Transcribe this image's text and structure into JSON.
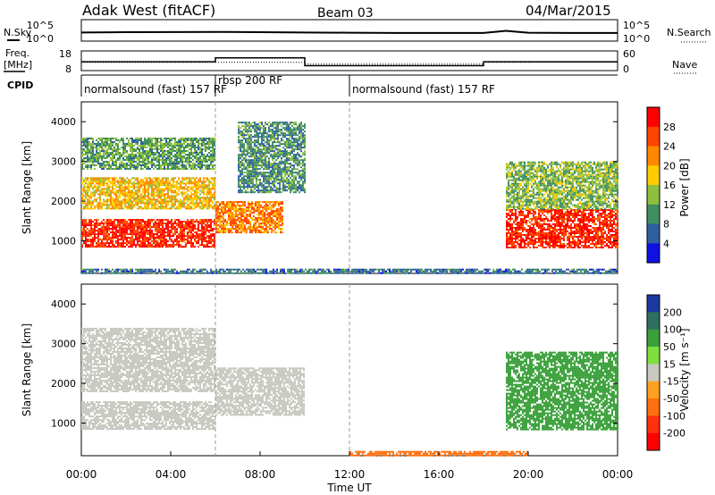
{
  "header": {
    "station": "Adak West (fitACF)",
    "beam": "Beam 03",
    "date": "04/Mar/2015"
  },
  "left_labels": {
    "nsky": "N.Sky",
    "freq": "Freq.",
    "mhz": "[MHz]",
    "cpid": "CPID"
  },
  "right_labels": {
    "nsearch": "N.Search",
    "nave": "Nave"
  },
  "chart_data": [
    {
      "type": "line",
      "panel": "noise",
      "series": [
        {
          "name": "N.Sky",
          "x": [
            0,
            2,
            4,
            6,
            8,
            10,
            12,
            14,
            16,
            18,
            19,
            20,
            22,
            24
          ],
          "values": [
            100,
            120,
            130,
            140,
            120,
            100,
            90,
            80,
            80,
            80,
            250,
            90,
            80,
            80
          ]
        },
        {
          "name": "N.Search",
          "x": [
            0,
            2,
            4,
            6,
            8,
            10,
            12,
            14,
            16,
            18,
            19,
            20,
            22,
            24
          ],
          "values": [
            100,
            110,
            120,
            125,
            110,
            95,
            85,
            80,
            80,
            80,
            220,
            85,
            80,
            80
          ]
        }
      ],
      "yticklabels_left": [
        "10^5",
        "10^0"
      ],
      "yticklabels_right": [
        "10^5",
        "10^0"
      ],
      "xlim": [
        0,
        24
      ]
    },
    {
      "type": "line",
      "panel": "frequency",
      "series": [
        {
          "name": "Freq.",
          "x": [
            0,
            6,
            6,
            10,
            10,
            18,
            18,
            24
          ],
          "values": [
            12.5,
            12.5,
            14.5,
            14.5,
            10.5,
            10.5,
            12.5,
            12.5
          ]
        },
        {
          "name": "Nave",
          "x": [
            0,
            6,
            10,
            10,
            18,
            18,
            24
          ],
          "values": [
            25,
            25,
            25,
            20,
            20,
            25,
            25
          ]
        }
      ],
      "yticklabels_left": [
        "18",
        "8"
      ],
      "yticklabels_right": [
        "60",
        "0"
      ],
      "ylim": [
        8,
        18
      ],
      "xlim": [
        0,
        24
      ]
    },
    {
      "type": "table",
      "panel": "cpid",
      "segments": [
        {
          "label": "normalsound (fast) 157 RF",
          "start": 0,
          "end": 6
        },
        {
          "label": "rbsp 200 RF",
          "start": 6,
          "end": 12
        },
        {
          "label": "normalsound (fast) 157 RF",
          "start": 12,
          "end": 24
        }
      ]
    },
    {
      "type": "heatmap",
      "panel": "power",
      "ylabel": "Slant Range [km]",
      "yticks": [
        1000,
        2000,
        3000,
        4000
      ],
      "ylim": [
        180,
        4500
      ],
      "xlim": [
        0,
        24
      ],
      "colorbar": {
        "label": "Power [dB]",
        "ticks": [
          "28",
          "24",
          "20",
          "16",
          "12",
          "8",
          "4"
        ],
        "colors": [
          "#ff0000",
          "#ff4400",
          "#ff8800",
          "#ffcc00",
          "#8fbf3f",
          "#3f8f5f",
          "#2f5fa0",
          "#1010e0"
        ]
      },
      "regions": [
        {
          "x": [
            0,
            6
          ],
          "y": [
            850,
            1550
          ],
          "value": 28
        },
        {
          "x": [
            6,
            9
          ],
          "y": [
            1200,
            2000
          ],
          "value": 22
        },
        {
          "x": [
            0,
            6
          ],
          "y": [
            1800,
            2600
          ],
          "value": 18
        },
        {
          "x": [
            0,
            6
          ],
          "y": [
            2800,
            3600
          ],
          "value": 10
        },
        {
          "x": [
            7,
            10
          ],
          "y": [
            2200,
            4000
          ],
          "value": 8
        },
        {
          "x": [
            19,
            24
          ],
          "y": [
            850,
            1800
          ],
          "value": 28
        },
        {
          "x": [
            19,
            24
          ],
          "y": [
            1800,
            3000
          ],
          "value": 12
        },
        {
          "x": [
            0,
            24
          ],
          "y": [
            180,
            300
          ],
          "value": 6
        }
      ]
    },
    {
      "type": "heatmap",
      "panel": "velocity",
      "ylabel": "Slant Range [km]",
      "xlabel": "Time UT",
      "yticks": [
        1000,
        2000,
        3000,
        4000
      ],
      "ylim": [
        180,
        4500
      ],
      "xlim": [
        0,
        24
      ],
      "xticklabels": [
        "00:00",
        "04:00",
        "08:00",
        "12:00",
        "16:00",
        "20:00",
        "00:00"
      ],
      "colorbar": {
        "label": "Velocity [m s⁻¹]",
        "ticks": [
          "200",
          "100",
          "50",
          "15",
          "-15",
          "-50",
          "-100",
          "-200"
        ],
        "colors": [
          "#1a3aa0",
          "#2f6f5f",
          "#3aa03a",
          "#7fdf3f",
          "#c8c8c0",
          "#ffa020",
          "#ff7010",
          "#ff3010",
          "#ff0000"
        ]
      },
      "regions": [
        {
          "x": [
            0,
            6
          ],
          "y": [
            850,
            1550
          ],
          "value": 0
        },
        {
          "x": [
            6,
            10
          ],
          "y": [
            1200,
            2400
          ],
          "value": 0
        },
        {
          "x": [
            0,
            6
          ],
          "y": [
            1800,
            3400
          ],
          "value": 0
        },
        {
          "x": [
            19,
            24
          ],
          "y": [
            850,
            2800
          ],
          "value": 40
        },
        {
          "x": [
            12,
            20
          ],
          "y": [
            180,
            300
          ],
          "value": -60
        }
      ]
    }
  ]
}
